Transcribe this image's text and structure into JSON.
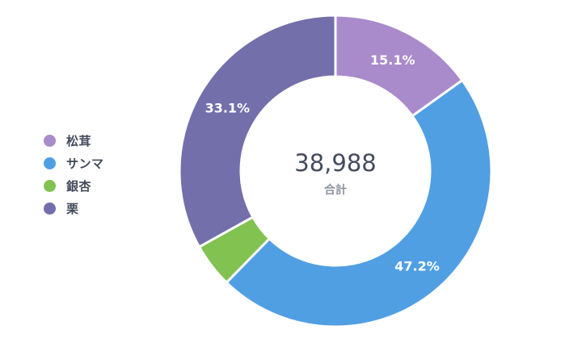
{
  "chart_data": {
    "type": "pie",
    "variant": "donut",
    "categories": [
      "松茸",
      "サンマ",
      "銀杏",
      "栗"
    ],
    "values": [
      15.1,
      47.2,
      4.6,
      33.1
    ],
    "value_labels": [
      "15.1%",
      "47.2%",
      "",
      "33.1%"
    ],
    "colors": [
      "#a98bcb",
      "#519fe3",
      "#82c251",
      "#736fab"
    ],
    "center": {
      "total": "38,988",
      "label": "合計"
    },
    "legend_position": "left",
    "start": "top, clockwise"
  }
}
